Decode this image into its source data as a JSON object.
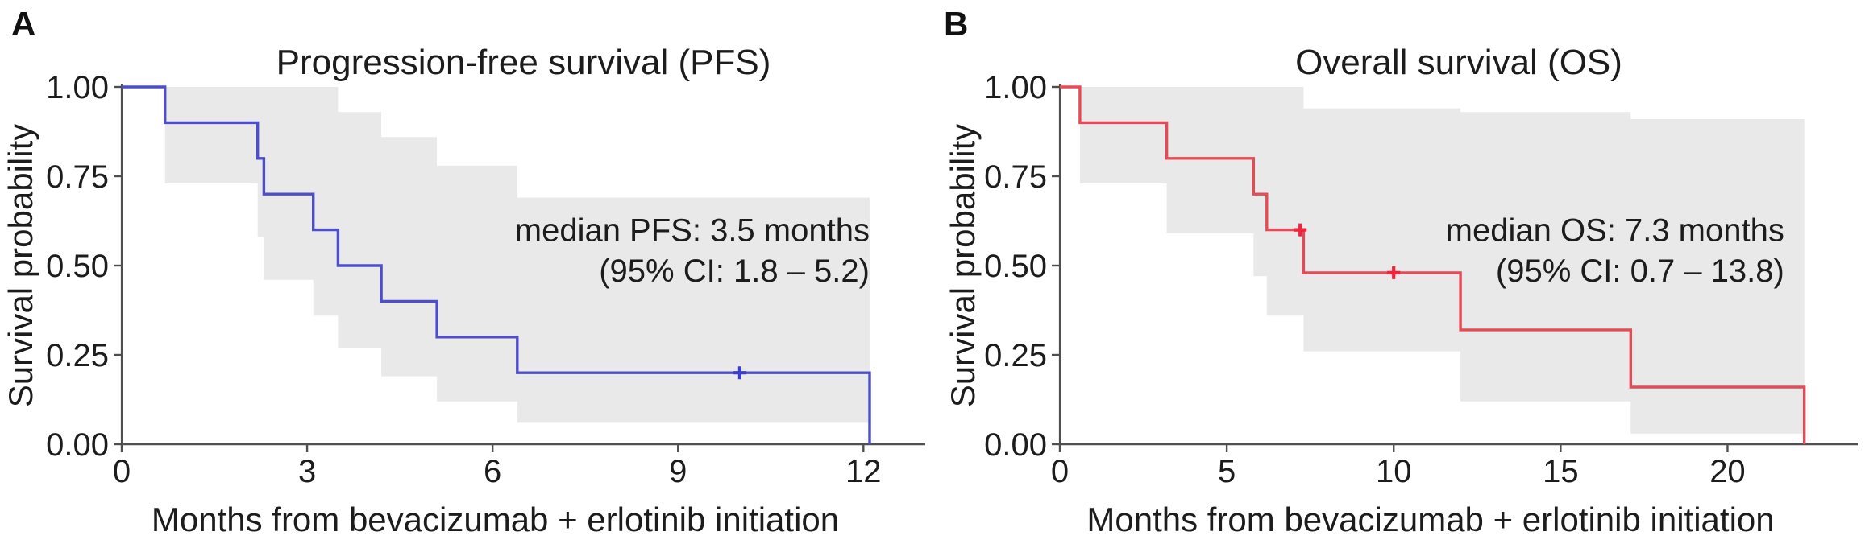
{
  "figure": {
    "background": "#ffffff",
    "text_color": "#1c1c1c",
    "axis_color": "#4f4f4f",
    "band_color": "#e9e9e9"
  },
  "chart_data": [
    {
      "type": "line",
      "subtype": "kaplan-meier-step",
      "panel_label": "A",
      "title": "Progression-free survival (PFS)",
      "xlabel": "Months from bevacizumab + erlotinib initiation",
      "ylabel": "Survival probability",
      "xlim": [
        0,
        13.0
      ],
      "ylim": [
        0,
        1
      ],
      "xticks": [
        0,
        3,
        6,
        9,
        12
      ],
      "yticks": [
        {
          "v": 0,
          "label": "0.00"
        },
        {
          "v": 0.25,
          "label": "0.25"
        },
        {
          "v": 0.5,
          "label": "0.50"
        },
        {
          "v": 0.75,
          "label": "0.75"
        },
        {
          "v": 1,
          "label": "1.00"
        }
      ],
      "grid": false,
      "legend": "none",
      "line_color": "#4e4ecb",
      "censor_color": "#3c3ccd",
      "km": [
        {
          "t": 0,
          "s": 1.0
        },
        {
          "t": 0.7,
          "s": 0.9
        },
        {
          "t": 2.2,
          "s": 0.8
        },
        {
          "t": 2.3,
          "s": 0.7
        },
        {
          "t": 3.1,
          "s": 0.6
        },
        {
          "t": 3.5,
          "s": 0.5
        },
        {
          "t": 4.2,
          "s": 0.4
        },
        {
          "t": 5.1,
          "s": 0.3
        },
        {
          "t": 6.4,
          "s": 0.2
        },
        {
          "t": 12.1,
          "s": 0.0
        }
      ],
      "censors": [
        {
          "t": 10.0,
          "s": 0.2
        }
      ],
      "ci_band": [
        {
          "t0": 0.7,
          "t1": 2.2,
          "lo": 0.73,
          "hi": 1.0
        },
        {
          "t0": 2.2,
          "t1": 2.3,
          "lo": 0.58,
          "hi": 1.0
        },
        {
          "t0": 2.3,
          "t1": 3.1,
          "lo": 0.46,
          "hi": 1.0
        },
        {
          "t0": 3.1,
          "t1": 3.5,
          "lo": 0.36,
          "hi": 1.0
        },
        {
          "t0": 3.5,
          "t1": 4.2,
          "lo": 0.27,
          "hi": 0.93
        },
        {
          "t0": 4.2,
          "t1": 5.1,
          "lo": 0.19,
          "hi": 0.86
        },
        {
          "t0": 5.1,
          "t1": 6.4,
          "lo": 0.12,
          "hi": 0.78
        },
        {
          "t0": 6.4,
          "t1": 12.1,
          "lo": 0.06,
          "hi": 0.69
        }
      ],
      "annotation": {
        "lines": [
          "median PFS: 3.5 months",
          "(95% CI: 1.8 – 5.2)"
        ],
        "anchor_x": 12.1,
        "line_y": [
          0.6,
          0.487
        ]
      }
    },
    {
      "type": "line",
      "subtype": "kaplan-meier-step",
      "panel_label": "B",
      "title": "Overall survival (OS)",
      "xlabel": "Months from bevacizumab + erlotinib initiation",
      "ylabel": "Survival probability",
      "xlim": [
        0,
        23.9
      ],
      "ylim": [
        0,
        1
      ],
      "xticks": [
        0,
        5,
        10,
        15,
        20
      ],
      "yticks": [
        {
          "v": 0,
          "label": "0.00"
        },
        {
          "v": 0.25,
          "label": "0.25"
        },
        {
          "v": 0.5,
          "label": "0.50"
        },
        {
          "v": 0.75,
          "label": "0.75"
        },
        {
          "v": 1,
          "label": "1.00"
        }
      ],
      "grid": false,
      "legend": "none",
      "line_color": "#e64a56",
      "censor_color": "#f5203a",
      "km": [
        {
          "t": 0,
          "s": 1.0
        },
        {
          "t": 0.6,
          "s": 0.9
        },
        {
          "t": 3.2,
          "s": 0.8
        },
        {
          "t": 5.8,
          "s": 0.7
        },
        {
          "t": 6.2,
          "s": 0.6
        },
        {
          "t": 7.3,
          "s": 0.48
        },
        {
          "t": 12.0,
          "s": 0.32
        },
        {
          "t": 17.1,
          "s": 0.16
        },
        {
          "t": 22.3,
          "s": 0.0
        }
      ],
      "censors": [
        {
          "t": 7.2,
          "s": 0.6
        },
        {
          "t": 10.0,
          "s": 0.48
        }
      ],
      "ci_band": [
        {
          "t0": 0.6,
          "t1": 3.2,
          "lo": 0.73,
          "hi": 1.0
        },
        {
          "t0": 3.2,
          "t1": 5.8,
          "lo": 0.59,
          "hi": 1.0
        },
        {
          "t0": 5.8,
          "t1": 6.2,
          "lo": 0.47,
          "hi": 1.0
        },
        {
          "t0": 6.2,
          "t1": 7.3,
          "lo": 0.36,
          "hi": 1.0
        },
        {
          "t0": 7.3,
          "t1": 12.0,
          "lo": 0.26,
          "hi": 0.94
        },
        {
          "t0": 12.0,
          "t1": 17.1,
          "lo": 0.12,
          "hi": 0.93
        },
        {
          "t0": 17.1,
          "t1": 22.3,
          "lo": 0.03,
          "hi": 0.91
        }
      ],
      "annotation": {
        "lines": [
          "median OS: 7.3 months",
          "(95% CI: 0.7 – 13.8)"
        ],
        "anchor_x": 21.7,
        "line_y": [
          0.6,
          0.487
        ]
      }
    }
  ]
}
